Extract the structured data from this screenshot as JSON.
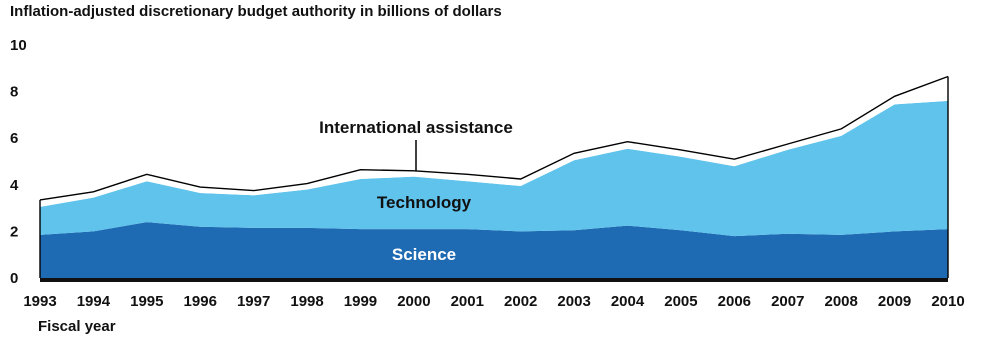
{
  "chart_data": {
    "type": "area",
    "title": "Inflation-adjusted discretionary budget authority in billions of dollars",
    "xlabel": "Fiscal year",
    "ylabel": "",
    "ylim": [
      0,
      10
    ],
    "y_ticks": [
      "0",
      "2",
      "4",
      "6",
      "8",
      "10"
    ],
    "x": [
      "1993",
      "1994",
      "1995",
      "1996",
      "1997",
      "1998",
      "1999",
      "2000",
      "2001",
      "2002",
      "2003",
      "2004",
      "2005",
      "2006",
      "2007",
      "2008",
      "2009",
      "2010"
    ],
    "stacked": true,
    "series": [
      {
        "name": "Science",
        "values": [
          1.85,
          2.0,
          2.4,
          2.2,
          2.15,
          2.15,
          2.1,
          2.1,
          2.1,
          2.0,
          2.05,
          2.25,
          2.05,
          1.8,
          1.9,
          1.85,
          2.0,
          2.1
        ]
      },
      {
        "name": "Technology",
        "values": [
          1.2,
          1.45,
          1.75,
          1.45,
          1.4,
          1.65,
          2.15,
          2.25,
          2.05,
          1.95,
          3.0,
          3.3,
          3.15,
          3.0,
          3.6,
          4.25,
          5.45,
          5.5
        ]
      },
      {
        "name": "International assistance",
        "values": [
          0.3,
          0.25,
          0.3,
          0.25,
          0.2,
          0.25,
          0.4,
          0.25,
          0.3,
          0.3,
          0.3,
          0.3,
          0.3,
          0.3,
          0.25,
          0.3,
          0.35,
          1.05
        ]
      }
    ],
    "colors": {
      "Science": "#1f6bb3",
      "Technology": "#5fc3ec",
      "International assistance": "#ffffff",
      "outline": "#000000",
      "baseline": "#111111"
    },
    "label_colors": {
      "Science": "#ffffff",
      "Technology": "#111111",
      "International assistance": "#111111"
    },
    "grid": false,
    "legend": "none (inline labels)"
  }
}
